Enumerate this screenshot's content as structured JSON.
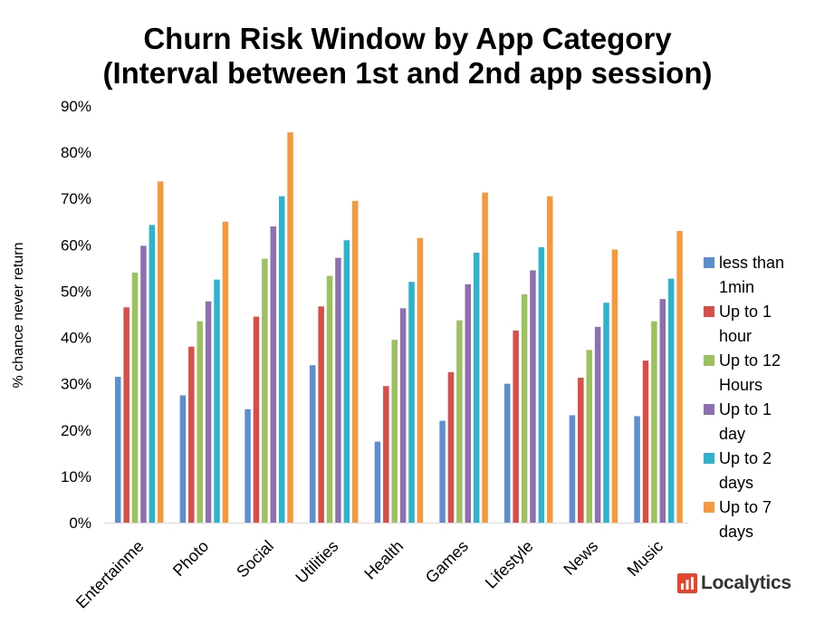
{
  "chart_data": {
    "type": "bar",
    "title": "Churn Risk Window by App Category",
    "subtitle": "(Interval between 1st and 2nd app session)",
    "ylabel": "% chance never return",
    "xlabel": "",
    "ylim": [
      0,
      90
    ],
    "yticks": [
      "0%",
      "10%",
      "20%",
      "30%",
      "40%",
      "50%",
      "60%",
      "70%",
      "80%",
      "90%"
    ],
    "grid": false,
    "legend_position": "right",
    "categories": [
      "Entertainme",
      "Photo",
      "Social",
      "Utilities",
      "Health",
      "Games",
      "Lifestyle",
      "News",
      "Music"
    ],
    "series": [
      {
        "name": "less than 1min",
        "legend_lines": [
          "less than",
          "1min"
        ],
        "color": "#5B8FD0",
        "values": [
          31.5,
          27.5,
          24.5,
          34,
          17.5,
          22,
          30,
          23.2,
          23
        ]
      },
      {
        "name": "Up to 1 hour",
        "legend_lines": [
          "Up to 1",
          "hour"
        ],
        "color": "#DA4E48",
        "values": [
          46.5,
          38,
          44.5,
          46.7,
          29.5,
          32.5,
          41.5,
          31.3,
          35
        ]
      },
      {
        "name": "Up to 12 Hours",
        "legend_lines": [
          "Up to 12",
          "Hours"
        ],
        "color": "#9BC25F",
        "values": [
          54,
          43.5,
          57,
          53.3,
          39.5,
          43.7,
          49.3,
          37.3,
          43.5
        ]
      },
      {
        "name": "Up to 1 day",
        "legend_lines": [
          "Up to 1",
          "day"
        ],
        "color": "#8E6FB2",
        "values": [
          59.8,
          47.8,
          64,
          57.2,
          46.3,
          51.5,
          54.5,
          42.3,
          48.3
        ]
      },
      {
        "name": "Up to 2 days",
        "legend_lines": [
          "Up to 2",
          "days"
        ],
        "color": "#2DB4CC",
        "values": [
          64.3,
          52.5,
          70.5,
          61,
          52,
          58.3,
          59.5,
          47.5,
          52.7
        ]
      },
      {
        "name": "Up to 7 days",
        "legend_lines": [
          "Up to 7",
          "days"
        ],
        "color": "#F6993C",
        "values": [
          73.7,
          65,
          84.3,
          69.5,
          61.5,
          71.3,
          70.5,
          59,
          63
        ]
      }
    ]
  },
  "logo": {
    "text": "Localytics",
    "icon": "localytics-logo-icon",
    "color": "#E8432E"
  }
}
